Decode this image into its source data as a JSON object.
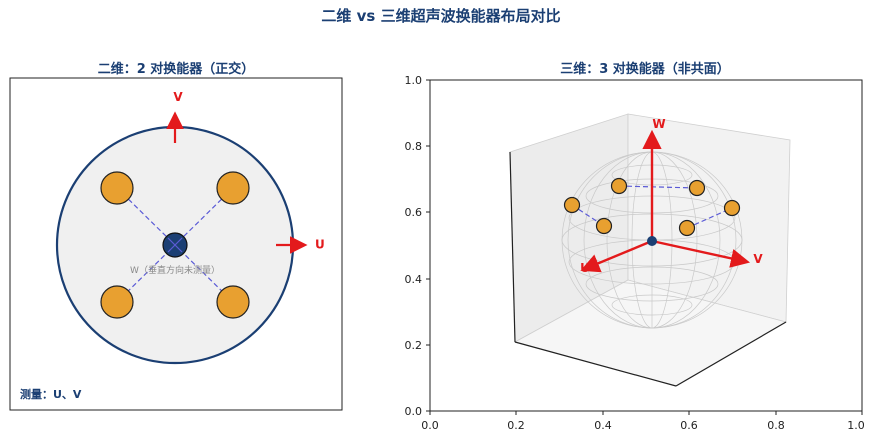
{
  "figure_title": "二维 vs 三维超声波换能器布局对比",
  "panel_2d": {
    "title": "二维：2 对换能器（正交）",
    "axis_u": "U",
    "axis_v": "V",
    "w_note": "W（垂直方向未测量）",
    "measure_text": "测量：U、V"
  },
  "panel_3d": {
    "title": "三维：3 对换能器（非共面）",
    "axis_u": "U",
    "axis_v": "V",
    "axis_w": "W",
    "ticks": [
      "0.0",
      "0.2",
      "0.4",
      "0.6",
      "0.8",
      "1.0"
    ]
  },
  "colors": {
    "title": "#1b3f73",
    "transducer": "#e8a030",
    "arrow": "#e31a1c",
    "boundary": "#1b3f73",
    "dashed": "#5b5bd6"
  }
}
